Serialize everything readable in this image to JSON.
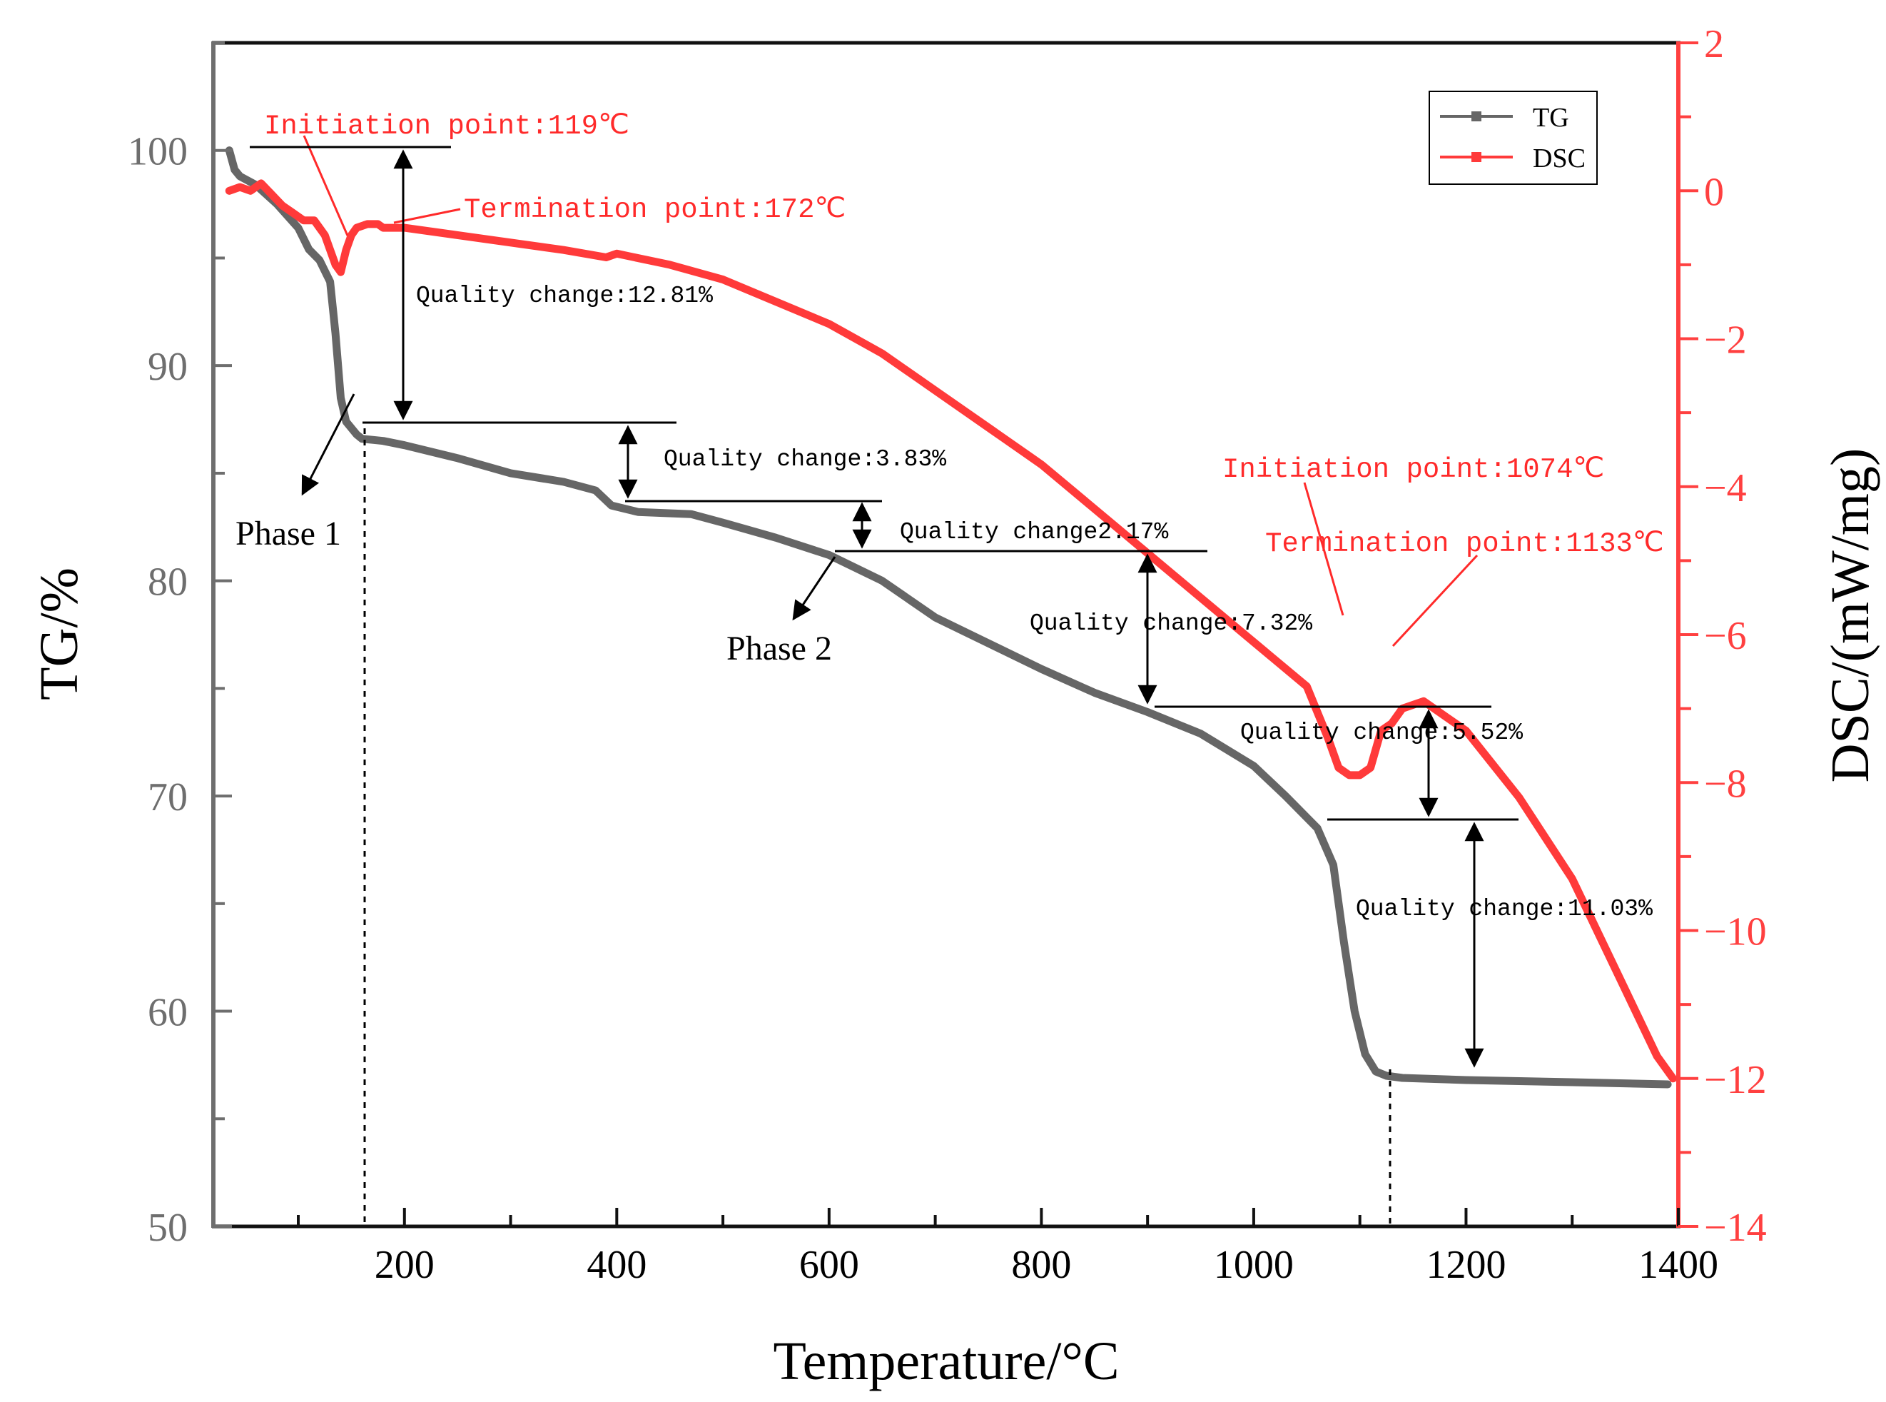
{
  "chart_data": {
    "type": "line",
    "xlabel": "Temperature/°C",
    "ylabel_left": "TG/%",
    "ylabel_right": "DSC/(mW/mg)",
    "xlim": [
      20,
      1400
    ],
    "ylim_left": [
      50,
      105
    ],
    "ylim_right": [
      -14,
      2
    ],
    "x_ticks": [
      "200",
      "400",
      "600",
      "800",
      "1000",
      "1200",
      "1400"
    ],
    "y_left_ticks": [
      "50",
      "60",
      "70",
      "80",
      "90",
      "100"
    ],
    "y_right_ticks": [
      "2",
      "0",
      "−2",
      "−4",
      "−6",
      "−8",
      "−10",
      "−12",
      "−14"
    ],
    "legend": {
      "position": "top-right",
      "entries": [
        "TG",
        "DSC"
      ]
    },
    "colors": {
      "TG": "#666666",
      "DSC": "#ff3a3a",
      "right_axis": "#ff4040",
      "left_axis": "#6e6e6e"
    },
    "series": [
      {
        "name": "TG",
        "x": [
          35,
          40,
          45,
          60,
          80,
          100,
          110,
          120,
          130,
          135,
          140,
          145,
          150,
          155,
          160,
          180,
          200,
          250,
          300,
          350,
          380,
          395,
          420,
          470,
          500,
          550,
          600,
          650,
          700,
          750,
          800,
          850,
          900,
          950,
          1000,
          1030,
          1060,
          1075,
          1085,
          1095,
          1105,
          1115,
          1125,
          1140,
          1200,
          1300,
          1390
        ],
        "y": [
          100.0,
          99.1,
          98.8,
          98.4,
          97.5,
          96.4,
          95.4,
          94.9,
          93.9,
          91.5,
          88.5,
          87.4,
          87.1,
          86.8,
          86.6,
          86.5,
          86.3,
          85.7,
          85.0,
          84.6,
          84.2,
          83.5,
          83.2,
          83.1,
          82.7,
          82.0,
          81.2,
          80.0,
          78.3,
          77.1,
          75.9,
          74.8,
          73.9,
          72.9,
          71.4,
          70.0,
          68.5,
          66.8,
          63.2,
          60.0,
          58.0,
          57.2,
          57.0,
          56.9,
          56.8,
          56.7,
          56.6
        ]
      },
      {
        "name": "DSC",
        "x": [
          35,
          45,
          55,
          65,
          75,
          85,
          95,
          105,
          115,
          120,
          125,
          135,
          140,
          145,
          150,
          155,
          165,
          175,
          180,
          200,
          250,
          300,
          350,
          390,
          400,
          450,
          500,
          550,
          600,
          650,
          700,
          750,
          800,
          850,
          900,
          950,
          1000,
          1050,
          1070,
          1080,
          1090,
          1100,
          1110,
          1120,
          1130,
          1140,
          1160,
          1180,
          1200,
          1250,
          1300,
          1350,
          1380,
          1395
        ],
        "y": [
          0.0,
          0.05,
          0.0,
          0.1,
          -0.05,
          -0.2,
          -0.3,
          -0.4,
          -0.4,
          -0.5,
          -0.6,
          -1.0,
          -1.1,
          -0.8,
          -0.6,
          -0.5,
          -0.45,
          -0.45,
          -0.5,
          -0.5,
          -0.6,
          -0.7,
          -0.8,
          -0.9,
          -0.85,
          -1.0,
          -1.2,
          -1.5,
          -1.8,
          -2.2,
          -2.7,
          -3.2,
          -3.7,
          -4.3,
          -4.9,
          -5.5,
          -6.1,
          -6.7,
          -7.4,
          -7.8,
          -7.9,
          -7.9,
          -7.8,
          -7.3,
          -7.2,
          -7.0,
          -6.9,
          -7.1,
          -7.3,
          -8.2,
          -9.3,
          -10.8,
          -11.7,
          -12.0
        ]
      }
    ],
    "annotations": {
      "dsc_initiation_1": "Initiation point:119℃",
      "dsc_termination_1": "Termination point:172℃",
      "dsc_initiation_2": "Initiation point:1074℃",
      "dsc_termination_2": "Termination point:1133℃",
      "qc1": "Quality change:12.81%",
      "qc2": "Quality change:3.83%",
      "qc3": "Quality change2.17%",
      "qc4": "Quality change:7.32%",
      "qc5": "Quality change:5.52%",
      "qc6": "Quality change:11.03%",
      "phase1": "Phase 1",
      "phase2": "Phase 2"
    }
  }
}
